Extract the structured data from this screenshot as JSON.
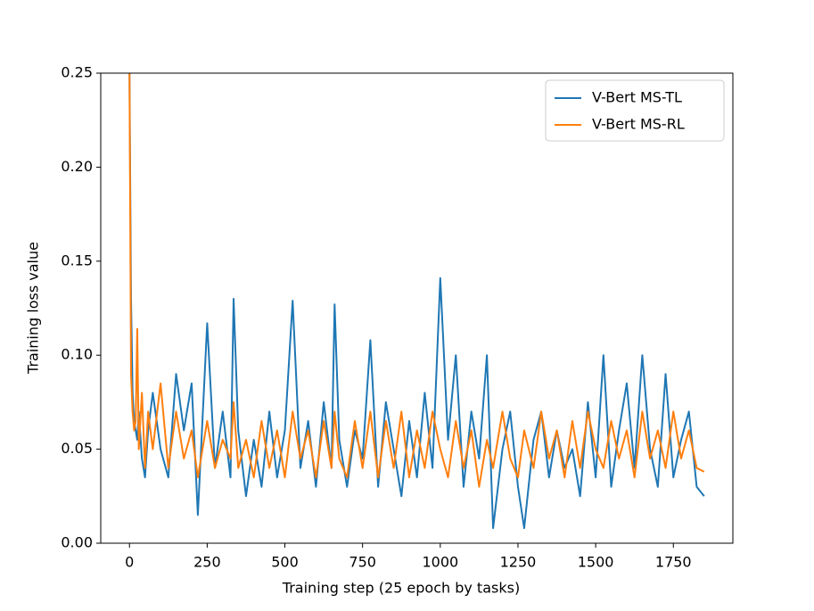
{
  "chart_data": {
    "type": "line",
    "x_label": "Training step (25 epoch by tasks)",
    "y_label": "Training loss value",
    "x": [
      0,
      5,
      10,
      15,
      20,
      25,
      30,
      40,
      50,
      60,
      75,
      100,
      125,
      150,
      175,
      200,
      220,
      250,
      275,
      300,
      325,
      335,
      350,
      375,
      400,
      425,
      450,
      475,
      500,
      525,
      550,
      575,
      600,
      625,
      650,
      660,
      675,
      700,
      725,
      750,
      775,
      800,
      825,
      850,
      875,
      900,
      925,
      950,
      975,
      1000,
      1025,
      1050,
      1075,
      1100,
      1125,
      1150,
      1170,
      1200,
      1225,
      1250,
      1270,
      1300,
      1325,
      1350,
      1375,
      1400,
      1425,
      1450,
      1475,
      1500,
      1525,
      1550,
      1575,
      1600,
      1625,
      1650,
      1675,
      1700,
      1725,
      1750,
      1775,
      1800,
      1825,
      1849
    ],
    "series": [
      {
        "name": "V-Bert MS-TL",
        "color": "#1f77b4",
        "values": [
          0.25,
          0.13,
          0.08,
          0.065,
          0.06,
          0.055,
          0.07,
          0.045,
          0.035,
          0.06,
          0.08,
          0.05,
          0.035,
          0.09,
          0.06,
          0.085,
          0.015,
          0.117,
          0.04,
          0.07,
          0.035,
          0.13,
          0.06,
          0.025,
          0.055,
          0.03,
          0.07,
          0.035,
          0.06,
          0.129,
          0.04,
          0.065,
          0.03,
          0.075,
          0.04,
          0.127,
          0.055,
          0.03,
          0.06,
          0.045,
          0.108,
          0.03,
          0.075,
          0.05,
          0.025,
          0.065,
          0.035,
          0.08,
          0.04,
          0.141,
          0.055,
          0.1,
          0.03,
          0.07,
          0.045,
          0.1,
          0.008,
          0.05,
          0.07,
          0.03,
          0.008,
          0.055,
          0.07,
          0.035,
          0.06,
          0.04,
          0.05,
          0.025,
          0.075,
          0.035,
          0.1,
          0.03,
          0.06,
          0.085,
          0.04,
          0.1,
          0.05,
          0.03,
          0.09,
          0.035,
          0.055,
          0.07,
          0.03,
          0.025
        ]
      },
      {
        "name": "V-Bert MS-RL",
        "color": "#ff7f0e",
        "values": [
          0.25,
          0.09,
          0.07,
          0.06,
          0.065,
          0.114,
          0.05,
          0.08,
          0.04,
          0.07,
          0.05,
          0.085,
          0.04,
          0.07,
          0.045,
          0.06,
          0.035,
          0.065,
          0.04,
          0.055,
          0.045,
          0.075,
          0.04,
          0.055,
          0.035,
          0.065,
          0.04,
          0.06,
          0.035,
          0.07,
          0.045,
          0.06,
          0.035,
          0.065,
          0.04,
          0.07,
          0.045,
          0.035,
          0.065,
          0.04,
          0.07,
          0.035,
          0.065,
          0.04,
          0.07,
          0.035,
          0.06,
          0.04,
          0.07,
          0.05,
          0.035,
          0.065,
          0.04,
          0.06,
          0.03,
          0.055,
          0.04,
          0.07,
          0.045,
          0.035,
          0.06,
          0.04,
          0.07,
          0.045,
          0.06,
          0.035,
          0.065,
          0.04,
          0.07,
          0.05,
          0.04,
          0.065,
          0.045,
          0.06,
          0.035,
          0.07,
          0.045,
          0.06,
          0.04,
          0.07,
          0.045,
          0.06,
          0.04,
          0.038
        ]
      }
    ],
    "xlim": [
      -92.45,
      1941.45
    ],
    "ylim": [
      0,
      0.25
    ],
    "xticks": [
      0,
      250,
      500,
      750,
      1000,
      1250,
      1500,
      1750
    ],
    "yticks": [
      {
        "value": 0,
        "label": "0.00"
      },
      0.05,
      {
        "value": 0.1,
        "label": "0.10"
      },
      0.15,
      {
        "value": 0.2,
        "label": "0.20"
      },
      0.25
    ],
    "legend": "upper right"
  }
}
